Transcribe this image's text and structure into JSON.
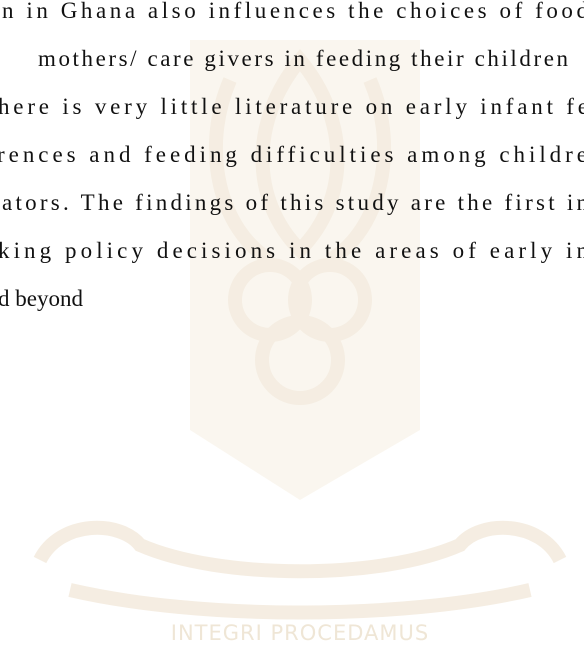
{
  "document": {
    "lines": [
      "n in Ghana also influences the choices of food",
      " mothers/ care givers in feeding their children",
      "here is very little literature on early infant fe",
      "rences and feeding difficulties among childre",
      "ators. The findings of this study are the first in",
      "king policy decisions in the areas of early in",
      "d beyond"
    ],
    "watermark": {
      "motto": "INTEGRI PROCEDAMUS"
    }
  }
}
